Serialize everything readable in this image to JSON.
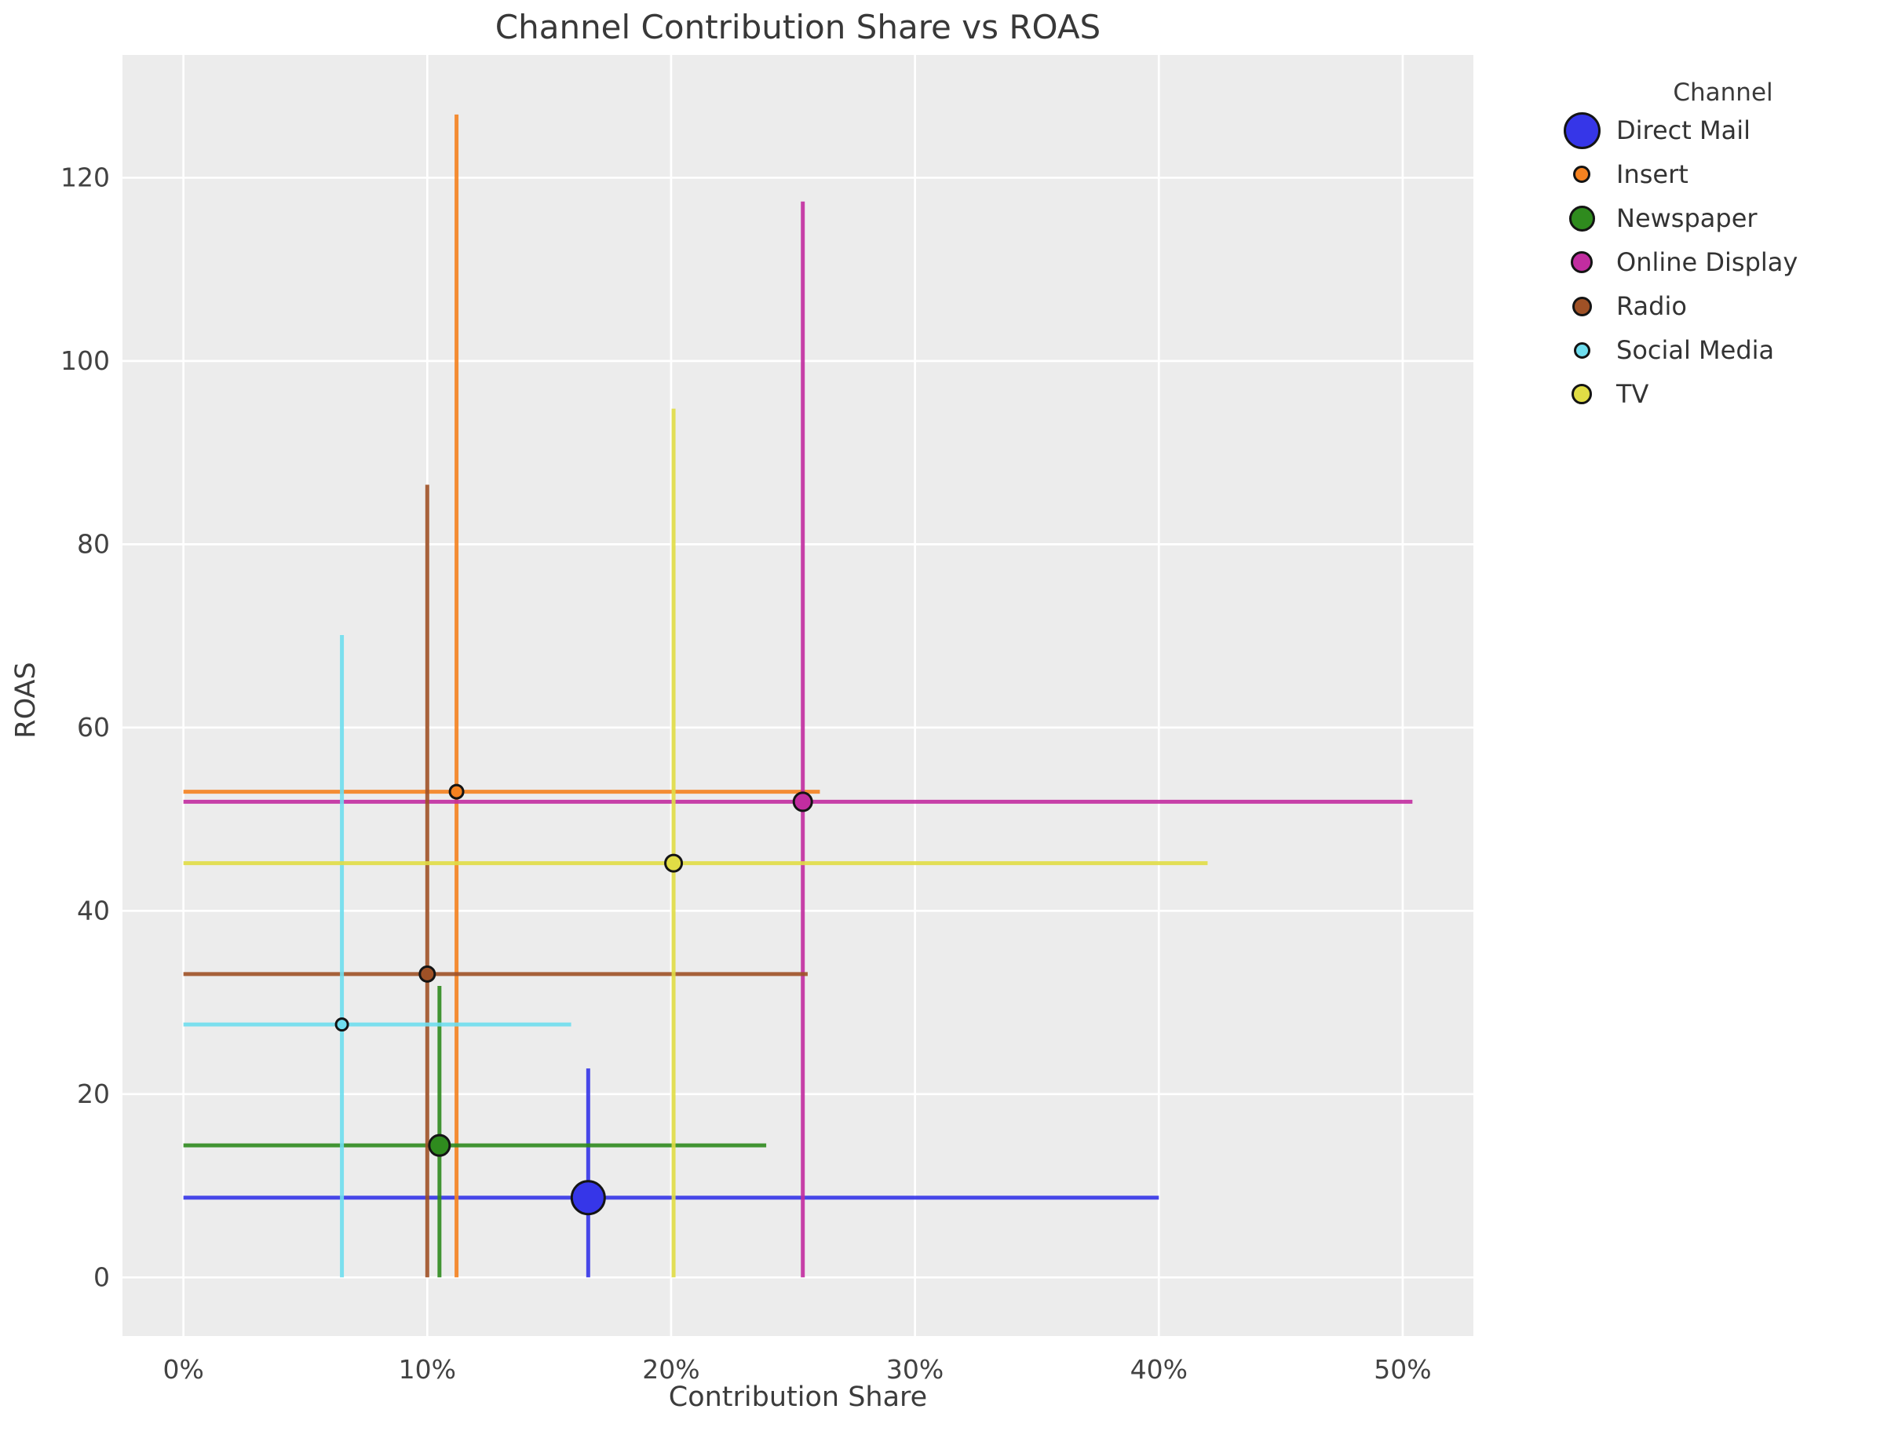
{
  "chart_data": {
    "type": "scatter",
    "title": "Channel Contribution Share vs ROAS",
    "xlabel": "Contribution Share",
    "ylabel": "ROAS",
    "xlim": [
      -2.5,
      52.9
    ],
    "ylim": [
      -6.4,
      133.4
    ],
    "x_ticks": [
      0,
      10,
      20,
      30,
      40,
      50
    ],
    "x_tick_labels": [
      "0%",
      "10%",
      "20%",
      "30%",
      "40%",
      "50%"
    ],
    "y_ticks": [
      0,
      20,
      40,
      60,
      80,
      100,
      120
    ],
    "y_tick_labels": [
      "0",
      "20",
      "40",
      "60",
      "80",
      "100",
      "120"
    ],
    "grid": true,
    "legend": {
      "title": "Channel",
      "position": "right"
    },
    "series": [
      {
        "name": "Direct Mail",
        "color": "#3636E8",
        "x": 16.6,
        "y": 8.7,
        "x_err_span": [
          0,
          40.0
        ],
        "y_err_span": [
          0,
          22.8
        ],
        "marker_radius": 21,
        "legend_radius": 20.5
      },
      {
        "name": "Insert",
        "color": "#F58220",
        "x": 11.2,
        "y": 53.0,
        "x_err_span": [
          0,
          26.1
        ],
        "y_err_span": [
          0,
          126.9
        ],
        "marker_radius": 8.5,
        "legend_radius": 8
      },
      {
        "name": "Newspaper",
        "color": "#2F8B1E",
        "x": 10.5,
        "y": 14.4,
        "x_err_span": [
          0,
          23.9
        ],
        "y_err_span": [
          0,
          31.8
        ],
        "marker_radius": 13,
        "legend_radius": 13.5
      },
      {
        "name": "Online Display",
        "color": "#C22DA0",
        "x": 25.4,
        "y": 51.9,
        "x_err_span": [
          0,
          50.4
        ],
        "y_err_span": [
          0,
          117.4
        ],
        "marker_radius": 11.5,
        "legend_radius": 11
      },
      {
        "name": "Radio",
        "color": "#9F5126",
        "x": 10.0,
        "y": 33.1,
        "x_err_span": [
          0,
          25.6
        ],
        "y_err_span": [
          0,
          86.5
        ],
        "marker_radius": 9.5,
        "legend_radius": 9.5
      },
      {
        "name": "Social Media",
        "color": "#6FDEEF",
        "x": 6.5,
        "y": 27.6,
        "x_err_span": [
          0,
          15.9
        ],
        "y_err_span": [
          0,
          70.1
        ],
        "marker_radius": 7.5,
        "legend_radius": 7.5
      },
      {
        "name": "TV",
        "color": "#E1DD45",
        "x": 20.1,
        "y": 45.2,
        "x_err_span": [
          0,
          42.0
        ],
        "y_err_span": [
          0,
          94.8
        ],
        "marker_radius": 10.5,
        "legend_radius": 10
      }
    ]
  },
  "styles": {
    "plot_background": "#ECECEC",
    "grid_color": "#FFFFFF",
    "marker_edge_color": "#141414",
    "tick_label_color": "#424242",
    "title_color": "#383838"
  }
}
